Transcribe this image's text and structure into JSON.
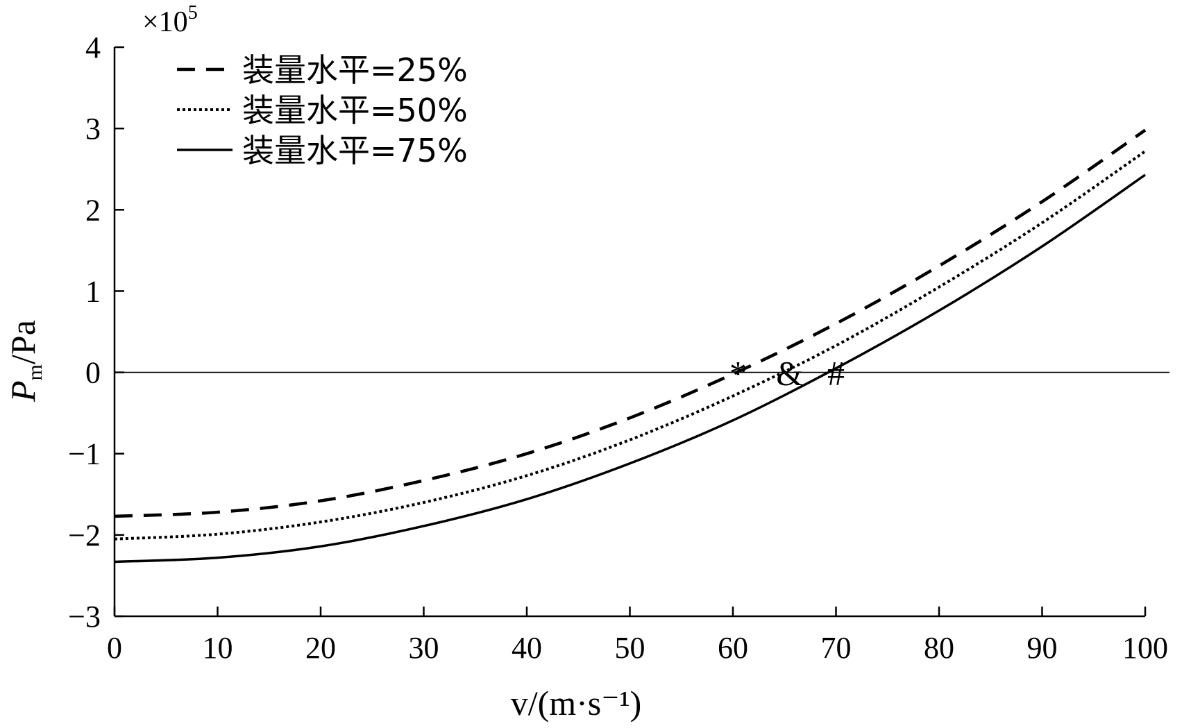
{
  "chart_data": {
    "type": "line",
    "xlabel": "v/(m·s⁻¹)",
    "ylabel": "Pm/Pa",
    "ylabel_main": "P",
    "ylabel_sub": "m",
    "ylabel_rest": "/Pa",
    "y_multiplier": "×10⁵",
    "xlim": [
      0,
      100
    ],
    "ylim": [
      -3,
      4
    ],
    "x_ticks": [
      0,
      10,
      20,
      30,
      40,
      50,
      60,
      70,
      80,
      90,
      100
    ],
    "y_ticks": [
      4,
      3,
      2,
      1,
      0,
      -1,
      -2,
      -3
    ],
    "y_tick_labels": [
      "4",
      "3",
      "2",
      "1",
      "0",
      "−1",
      "−2",
      "−3"
    ],
    "grid": false,
    "legend_position": "top-left",
    "zero_line": true,
    "series": [
      {
        "name": "装量水平=25%",
        "line_style": "dashed",
        "color": "#000000",
        "x": [
          0,
          10,
          20,
          30,
          40,
          50,
          60,
          70,
          80,
          90,
          100
        ],
        "y": [
          -1.77,
          -1.72,
          -1.58,
          -1.33,
          -1.0,
          -0.56,
          -0.02,
          0.6,
          1.31,
          2.1,
          2.98
        ]
      },
      {
        "name": "装量水平=50%",
        "line_style": "dotted",
        "color": "#000000",
        "x": [
          0,
          10,
          20,
          30,
          40,
          50,
          60,
          70,
          80,
          90,
          100
        ],
        "y": [
          -2.05,
          -1.99,
          -1.84,
          -1.6,
          -1.27,
          -0.83,
          -0.29,
          0.33,
          1.05,
          1.84,
          2.72
        ]
      },
      {
        "name": "装量水平=75%",
        "line_style": "solid",
        "color": "#000000",
        "x": [
          0,
          10,
          20,
          30,
          40,
          50,
          60,
          70,
          80,
          90,
          100
        ],
        "y": [
          -2.33,
          -2.28,
          -2.14,
          -1.89,
          -1.56,
          -1.12,
          -0.59,
          0.05,
          0.76,
          1.55,
          2.43
        ]
      }
    ],
    "annotations": [
      {
        "text": "*",
        "x": 60.5,
        "y": 0
      },
      {
        "text": "&",
        "x": 65.5,
        "y": 0
      },
      {
        "text": "#",
        "x": 70,
        "y": 0
      }
    ]
  }
}
